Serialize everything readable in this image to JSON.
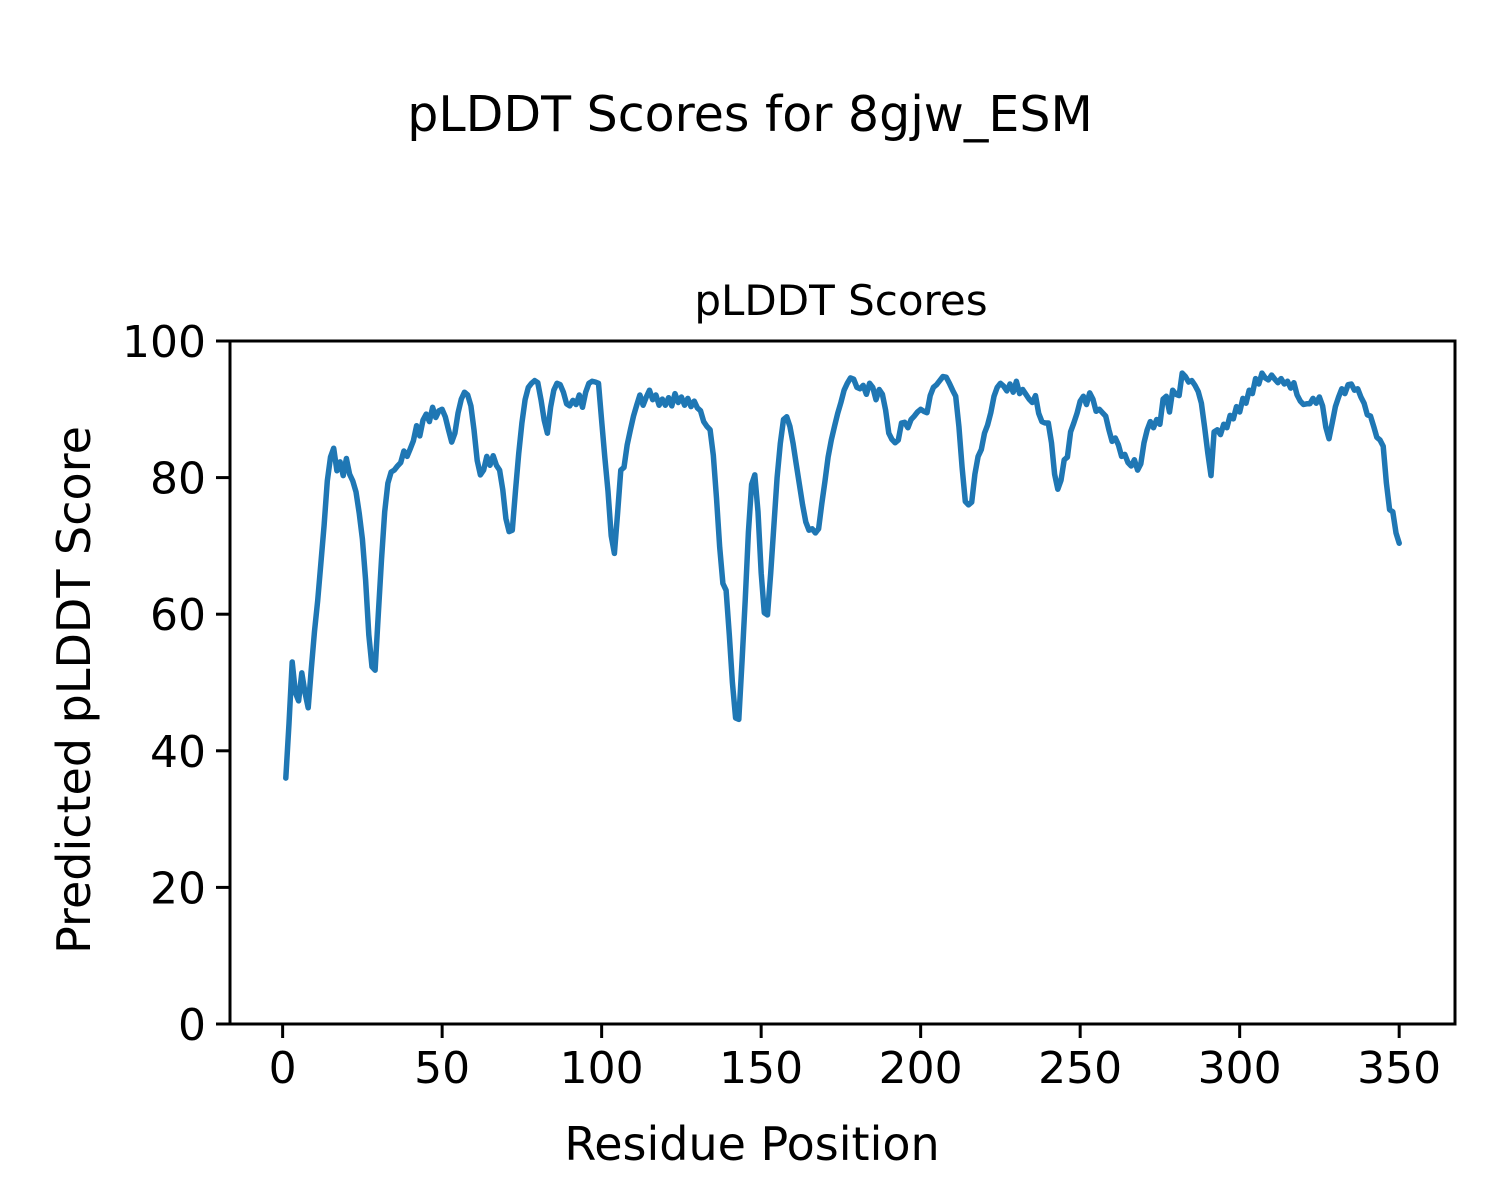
{
  "figure": {
    "background": "#ffffff"
  },
  "chart_data": {
    "type": "line",
    "title": "pLDDT Scores for 8gjw_ESM",
    "axes_title": "pLDDT Scores",
    "xlabel": "Residue Position",
    "ylabel": "Predicted pLDDT Score",
    "legend": "none",
    "grid": false,
    "line_color": "#1f77b4",
    "spine_color": "#000000",
    "text_color": "#000000",
    "xlim": [
      -16.5,
      367.5
    ],
    "ylim": [
      0,
      100
    ],
    "xticks": [
      0,
      50,
      100,
      150,
      200,
      250,
      300,
      350
    ],
    "yticks": [
      0,
      20,
      40,
      60,
      80,
      100
    ],
    "x_start": 1,
    "x_step": 1,
    "series_name": "pLDDT per residue",
    "values": [
      36.0,
      44.0,
      53.0,
      48.5,
      47.3,
      51.4,
      48.5,
      46.3,
      52.0,
      57.5,
      62.0,
      67.5,
      73.0,
      79.5,
      83.0,
      84.3,
      81.0,
      82.3,
      80.3,
      82.8,
      80.5,
      79.5,
      77.9,
      74.8,
      71.0,
      65.0,
      57.0,
      52.3,
      51.8,
      60.0,
      68.0,
      75.0,
      79.2,
      80.8,
      81.1,
      81.7,
      82.2,
      83.9,
      83.1,
      84.2,
      85.4,
      87.6,
      86.1,
      88.4,
      89.3,
      88.2,
      90.3,
      88.8,
      89.8,
      90.0,
      88.9,
      87.0,
      85.2,
      86.5,
      89.5,
      91.5,
      92.5,
      92.1,
      90.5,
      87.0,
      82.5,
      80.4,
      81.1,
      83.1,
      81.8,
      83.2,
      81.8,
      81.1,
      78.2,
      74.0,
      72.1,
      72.3,
      78.1,
      83.5,
      88.0,
      91.4,
      93.2,
      93.8,
      94.2,
      93.9,
      91.4,
      88.4,
      86.5,
      90.3,
      92.8,
      93.8,
      93.6,
      92.5,
      90.8,
      90.5,
      91.3,
      90.7,
      92.1,
      90.3,
      92.5,
      93.8,
      94.1,
      94.0,
      93.8,
      88.4,
      83.0,
      78.0,
      71.5,
      68.9,
      74.8,
      81.1,
      81.5,
      84.8,
      87.0,
      89.0,
      90.6,
      92.1,
      90.6,
      91.8,
      92.8,
      91.4,
      92.1,
      90.6,
      91.5,
      90.6,
      91.7,
      90.5,
      92.3,
      91.0,
      91.8,
      90.6,
      91.6,
      90.4,
      91.2,
      90.2,
      89.8,
      88.2,
      87.5,
      87.0,
      83.3,
      77.0,
      69.8,
      64.5,
      63.5,
      57.0,
      50.0,
      44.8,
      44.6,
      53.0,
      62.0,
      72.0,
      79.0,
      80.4,
      75.0,
      66.0,
      60.2,
      59.9,
      66.0,
      73.0,
      80.0,
      85.0,
      88.5,
      88.9,
      87.5,
      85.0,
      82.0,
      79.0,
      76.0,
      73.5,
      72.3,
      72.5,
      71.9,
      72.5,
      76.2,
      79.5,
      83.0,
      85.5,
      87.5,
      89.4,
      91.0,
      92.8,
      93.8,
      94.6,
      94.4,
      93.2,
      93.0,
      93.5,
      92.2,
      93.8,
      93.2,
      91.4,
      92.9,
      92.2,
      89.9,
      86.5,
      85.6,
      85.1,
      85.5,
      88.0,
      88.1,
      87.3,
      88.5,
      89.0,
      89.6,
      90.0,
      89.7,
      89.5,
      92.0,
      93.2,
      93.6,
      94.2,
      94.8,
      94.7,
      93.8,
      92.8,
      91.9,
      87.5,
      81.5,
      76.5,
      76.0,
      76.4,
      80.5,
      83.1,
      84.1,
      86.5,
      87.7,
      89.5,
      91.9,
      93.2,
      93.8,
      93.4,
      92.7,
      93.7,
      92.5,
      94.1,
      92.3,
      92.9,
      92.2,
      91.5,
      91.0,
      92.0,
      89.4,
      88.2,
      88.0,
      88.0,
      85.1,
      80.5,
      78.3,
      79.6,
      82.6,
      83.0,
      86.7,
      88.0,
      89.4,
      91.2,
      91.9,
      90.7,
      92.4,
      91.5,
      89.7,
      90.0,
      89.5,
      89.0,
      87.0,
      85.3,
      85.8,
      84.8,
      83.1,
      83.4,
      82.2,
      81.7,
      82.6,
      81.1,
      82.0,
      85.1,
      87.0,
      88.2,
      87.3,
      88.5,
      87.8,
      91.5,
      91.9,
      89.6,
      92.8,
      92.2,
      92.0,
      95.3,
      94.8,
      94.0,
      94.2,
      93.5,
      92.6,
      90.9,
      87.4,
      83.6,
      80.3,
      86.7,
      87.0,
      86.3,
      87.8,
      87.3,
      89.1,
      88.6,
      90.4,
      89.6,
      91.6,
      90.9,
      92.8,
      92.3,
      94.5,
      93.7,
      95.3,
      94.6,
      94.3,
      95.0,
      94.4,
      93.9,
      94.5,
      93.7,
      94.1,
      93.1,
      93.9,
      92.1,
      91.2,
      90.7,
      90.8,
      90.8,
      91.6,
      90.9,
      91.8,
      90.5,
      87.4,
      85.7,
      88.0,
      90.4,
      91.8,
      93.0,
      92.3,
      93.6,
      93.7,
      92.8,
      93.0,
      91.8,
      90.9,
      89.2,
      89.0,
      87.5,
      85.9,
      85.5,
      84.6,
      79.2,
      75.3,
      75.0,
      71.9,
      70.4
    ]
  }
}
